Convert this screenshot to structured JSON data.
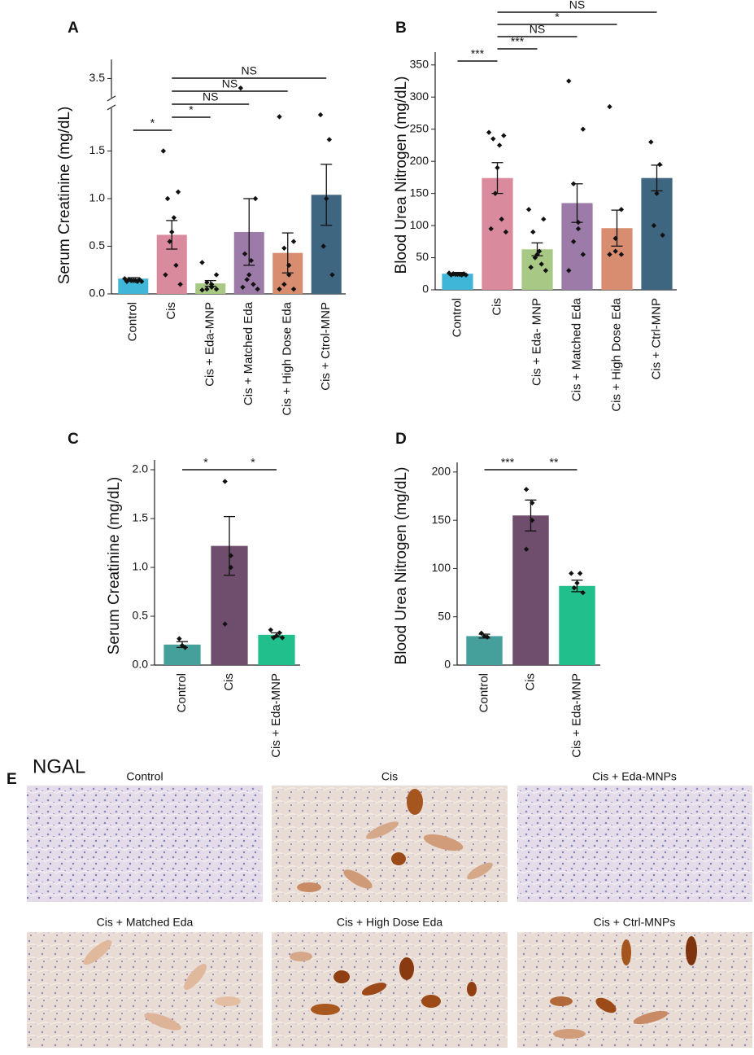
{
  "chart_data": [
    {
      "type": "bar",
      "panel_label": "A",
      "y_label": "Serum Creatinine (mg/dL)",
      "categories": [
        "Control",
        "Cis",
        "Cis + Eda-MNP",
        "Cis + Matched Eda",
        "Cis + High Dose Eda",
        "Cis + Ctrol-MNP"
      ],
      "colors": [
        "#3fb6d8",
        "#d98b9d",
        "#a8c985",
        "#9d7ba9",
        "#d98d70",
        "#3e6680"
      ],
      "values": [
        0.16,
        0.62,
        0.11,
        0.65,
        0.43,
        1.04
      ],
      "errors": [
        0.01,
        0.15,
        0.03,
        0.35,
        0.21,
        0.32
      ],
      "points": [
        [
          0.16,
          0.15,
          0.15,
          0.14,
          0.14,
          0.14,
          0.13,
          0.13,
          0.13
        ],
        [
          1.5,
          1.07,
          1.0,
          0.8,
          0.65,
          0.55,
          0.3,
          0.2,
          0.1
        ],
        [
          0.33,
          0.2,
          0.12,
          0.1,
          0.07,
          0.05,
          0.05,
          0.04
        ],
        [
          3.4,
          1.0,
          0.42,
          0.35,
          0.2,
          0.15,
          0.1,
          0.07,
          0.05
        ],
        [
          1.86,
          0.55,
          0.48,
          0.3,
          0.2,
          0.1,
          0.05,
          0.05
        ],
        [
          1.88,
          1.62,
          1.0,
          0.5,
          0.2
        ]
      ],
      "ylim": [
        0,
        3.7
      ],
      "axis_break": [
        1.95,
        3.3
      ],
      "yticks": [
        {
          "value": 0,
          "label": "0.0"
        },
        0.5,
        {
          "value": 1,
          "label": "1.0"
        },
        1.5,
        3.5
      ],
      "comparisons": [
        {
          "label": "*",
          "groups": [
            "Control",
            "Cis"
          ]
        },
        {
          "label": "*",
          "groups": [
            "Cis",
            "Cis + Eda-MNP"
          ]
        },
        {
          "label": "NS",
          "groups": [
            "Cis",
            "Cis + Matched Eda"
          ]
        },
        {
          "label": "NS",
          "groups": [
            "Cis",
            "Cis + High Dose Eda"
          ]
        },
        {
          "label": "NS",
          "groups": [
            "Cis",
            "Cis + Ctrol-MNP"
          ]
        }
      ]
    },
    {
      "type": "bar",
      "panel_label": "B",
      "y_label": "Blood Urea Nitrogen (mg/dL)",
      "categories": [
        "Control",
        "Cis",
        "Cis + Eda- MNP",
        "Cis + Matched Eda",
        "Cis + High Dose Eda",
        "Cis + Ctrl-MNP"
      ],
      "colors": [
        "#3fb6d8",
        "#d98b9d",
        "#a8c985",
        "#9d7ba9",
        "#d98d70",
        "#3e6680"
      ],
      "values": [
        25,
        174,
        63,
        135,
        96,
        174
      ],
      "errors": [
        2,
        24,
        10,
        30,
        28,
        20
      ],
      "points": [
        [
          26,
          25,
          25,
          24,
          24,
          24,
          23,
          23,
          23
        ],
        [
          245,
          240,
          235,
          225,
          190,
          150,
          110,
          95,
          90
        ],
        [
          125,
          110,
          90,
          60,
          55,
          50,
          40,
          35,
          30
        ],
        [
          325,
          250,
          165,
          105,
          95,
          75,
          55,
          30
        ],
        [
          285,
          125,
          80,
          60,
          55,
          55
        ],
        [
          230,
          195,
          150,
          100,
          85
        ]
      ],
      "ylim": [
        0,
        370
      ],
      "yticks": [
        0,
        50,
        100,
        150,
        200,
        250,
        300,
        350
      ],
      "comparisons": [
        {
          "label": "***",
          "groups": [
            "Control",
            "Cis"
          ]
        },
        {
          "label": "***",
          "groups": [
            "Cis",
            "Cis + Eda- MNP"
          ]
        },
        {
          "label": "NS",
          "groups": [
            "Cis",
            "Cis + Matched Eda"
          ]
        },
        {
          "label": "*",
          "groups": [
            "Cis",
            "Cis + High Dose Eda"
          ]
        },
        {
          "label": "NS",
          "groups": [
            "Cis",
            "Cis + Ctrl-MNP"
          ]
        }
      ]
    },
    {
      "type": "bar",
      "panel_label": "C",
      "y_label": "Serum Creatinine (mg/dL)",
      "categories": [
        "Control",
        "Cis",
        "Cis + Eda-MNP"
      ],
      "colors": [
        "#45a09c",
        "#6e4e6c",
        "#20bf8b"
      ],
      "values": [
        0.21,
        1.22,
        0.31
      ],
      "errors": [
        0.03,
        0.3,
        0.02
      ],
      "points": [
        [
          0.27,
          0.2,
          0.18
        ],
        [
          1.88,
          1.12,
          1.0,
          0.42
        ],
        [
          0.36,
          0.33,
          0.3,
          0.28,
          0.28
        ]
      ],
      "ylim": [
        0,
        2.1
      ],
      "yticks": [
        {
          "value": 0,
          "label": "0.0"
        },
        0.5,
        {
          "value": 1,
          "label": "1.0"
        },
        1.5,
        {
          "value": 2,
          "label": "2.0"
        }
      ],
      "comparisons": [
        {
          "label": "*",
          "groups": [
            "Control",
            "Cis"
          ]
        },
        {
          "label": "*",
          "groups": [
            "Cis",
            "Cis + Eda-MNP"
          ]
        }
      ]
    },
    {
      "type": "bar",
      "panel_label": "D",
      "y_label": "Blood Urea Nitrogen (mg/dL)",
      "categories": [
        "Control",
        "Cis",
        "Cis + Eda-MNP"
      ],
      "colors": [
        "#45a09c",
        "#6e4e6c",
        "#20bf8b"
      ],
      "values": [
        30,
        155,
        82
      ],
      "errors": [
        2,
        16,
        6
      ],
      "points": [
        [
          33,
          30,
          29
        ],
        [
          182,
          168,
          150,
          120
        ],
        [
          95,
          95,
          85,
          80,
          75
        ]
      ],
      "ylim": [
        0,
        210
      ],
      "yticks": [
        0,
        50,
        100,
        150,
        200
      ],
      "comparisons": [
        {
          "label": "***",
          "groups": [
            "Control",
            "Cis"
          ]
        },
        {
          "label": "**",
          "groups": [
            "Cis",
            "Cis + Eda-MNP"
          ]
        }
      ]
    }
  ],
  "panel_e": {
    "panel_label": "E",
    "title": "NGAL",
    "images": [
      {
        "caption": "Control"
      },
      {
        "caption": "Cis"
      },
      {
        "caption": "Cis + Eda-MNPs"
      },
      {
        "caption": "Cis + Matched Eda"
      },
      {
        "caption": "Cis + High Dose Eda"
      },
      {
        "caption": "Cis + Ctrl-MNPs"
      }
    ]
  }
}
